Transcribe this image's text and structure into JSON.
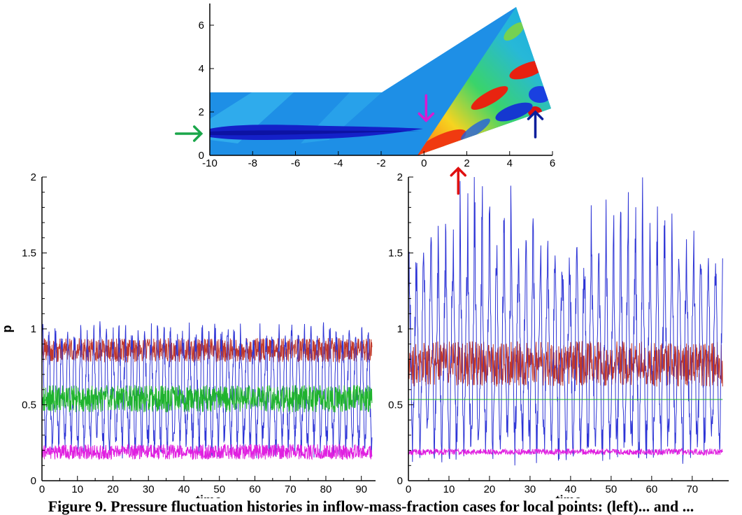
{
  "chart_data": [
    {
      "type": "heatmap",
      "description_visible": "contour field over computational domain",
      "xlim": [
        -10,
        6
      ],
      "ylim": [
        0,
        7
      ],
      "x_ticks": [
        "-10",
        "-8",
        "-6",
        "-4",
        "-2",
        "0",
        "2",
        "4",
        "6"
      ],
      "y_ticks": [
        "0",
        "2",
        "4",
        "6"
      ],
      "arrows": [
        {
          "color": "#1aa64a",
          "direction": "right",
          "x": -10.4,
          "y": 1.0
        },
        {
          "color": "#d81bd0",
          "direction": "down",
          "x": 0.1,
          "y": 1.6
        },
        {
          "color": "#e01010",
          "direction": "up",
          "x": 1.6,
          "y": -0.6
        },
        {
          "color": "#0a1e9c",
          "direction": "up",
          "x": 5.2,
          "y": 2.0
        }
      ]
    },
    {
      "type": "line",
      "xlabel": "time",
      "ylabel": "p",
      "xlim": [
        0,
        94
      ],
      "ylim": [
        0,
        2
      ],
      "x_ticks": [
        "0",
        "10",
        "20",
        "30",
        "40",
        "50",
        "60",
        "70",
        "80",
        "90"
      ],
      "y_ticks": [
        "0",
        "0.5",
        "1",
        "1.5",
        "2"
      ],
      "series": [
        {
          "color": "#c0392b",
          "mean": 0.86,
          "amplitude": 0.08,
          "x_end": 93
        },
        {
          "color": "#2e35d6",
          "mean": 0.6,
          "amplitude": 0.35,
          "x_end": 93
        },
        {
          "color": "#1fb32e",
          "mean": 0.54,
          "amplitude": 0.09,
          "x_end": 93
        },
        {
          "color": "#e020e0",
          "mean": 0.19,
          "amplitude": 0.05,
          "x_end": 93
        }
      ]
    },
    {
      "type": "line",
      "xlabel": "time",
      "ylabel": "",
      "xlim": [
        0,
        79
      ],
      "ylim": [
        0,
        2
      ],
      "x_ticks": [
        "0",
        "10",
        "20",
        "30",
        "40",
        "50",
        "60",
        "70"
      ],
      "y_ticks": [
        "0",
        "0.5",
        "1",
        "1.5",
        "2"
      ],
      "series": [
        {
          "color": "#c0392b",
          "mean": 0.77,
          "amplitude": 0.15,
          "x_end": 77.5
        },
        {
          "color": "#2e35d6",
          "mean": 0.8,
          "amplitude": 0.55,
          "peak_max": 1.99,
          "x_end": 77.5
        },
        {
          "color": "#1fb32e",
          "mean": 0.535,
          "amplitude": 0.0,
          "x_end": 77.5
        },
        {
          "color": "#e020e0",
          "mean": 0.19,
          "amplitude": 0.02,
          "x_end": 77.5
        }
      ]
    }
  ],
  "caption": "Figure 9. Pressure fluctuation histories in inflow-mass-fraction cases for local points: (left)... and ..."
}
